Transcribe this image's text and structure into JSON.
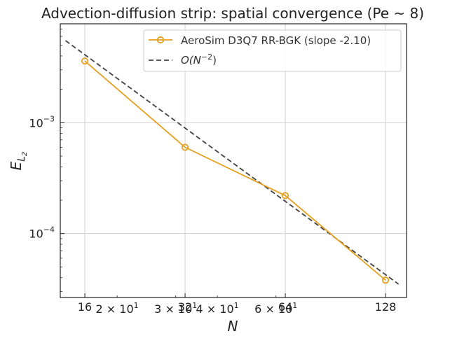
{
  "chart_data": {
    "type": "line",
    "title": "Advection-diffusion strip: spatial convergence (Pe ~ 8)",
    "xlabel": "N",
    "ylabel_main": "E",
    "ylabel_sub": "L",
    "ylabel_subsub": "2",
    "xscale": "log",
    "yscale": "log",
    "xlim": [
      13.5,
      148
    ],
    "ylim": [
      2.65e-05,
      0.0078
    ],
    "grid": true,
    "legend_position": "top-right",
    "x_ticks_major": [
      {
        "value": 16,
        "label": "16"
      },
      {
        "value": 32,
        "label": "32"
      },
      {
        "value": 64,
        "label": "64"
      },
      {
        "value": 128,
        "label": "128"
      }
    ],
    "x_ticks_log": [
      {
        "value": 20,
        "base": "2 × 10",
        "exp": "1"
      },
      {
        "value": 30,
        "base": "3 × 10",
        "exp": "1"
      },
      {
        "value": 40,
        "base": "4 × 10",
        "exp": "1"
      },
      {
        "value": 60,
        "base": "6 × 10",
        "exp": "1"
      }
    ],
    "y_ticks": [
      {
        "value": 0.001,
        "base": "10",
        "exp": "−3"
      },
      {
        "value": 0.0001,
        "base": "10",
        "exp": "−4"
      }
    ],
    "series": [
      {
        "name": "AeroSim D3Q7 RR-BGK (slope -2.10)",
        "style": "solid-with-circles",
        "color": "#E6A020",
        "x": [
          16,
          32,
          64,
          128
        ],
        "y": [
          0.0036,
          0.0006,
          0.00022,
          3.8e-05
        ]
      },
      {
        "name_prefix": "O(N",
        "name_exp": "−2",
        "name_suffix": ")",
        "style": "dashed",
        "color": "#444444",
        "x": [
          14,
          140
        ],
        "y": [
          0.0055,
          3.5e-05
        ]
      }
    ]
  }
}
